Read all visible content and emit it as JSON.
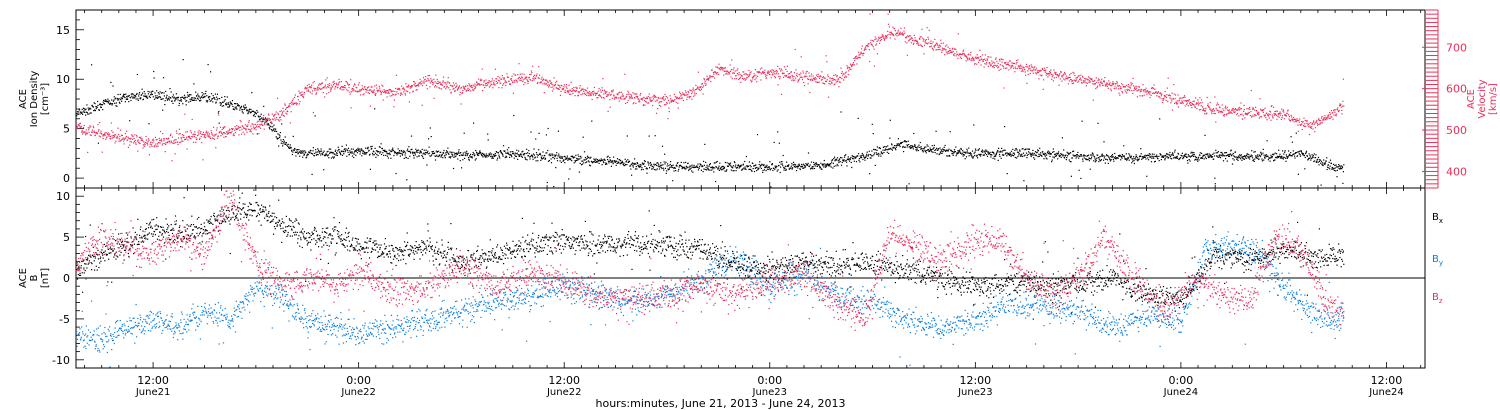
{
  "colors": {
    "black": "#000000",
    "red": "#e8305a",
    "blue": "#0a7fe0"
  },
  "footer": {
    "xlabel": "hours:minutes, June 21, 2013 - June 24, 2013"
  },
  "x_ticks": [
    {
      "time": "12:00",
      "date": "June21"
    },
    {
      "time": "0:00",
      "date": "June22"
    },
    {
      "time": "12:00",
      "date": "June22"
    },
    {
      "time": "0:00",
      "date": "June23"
    },
    {
      "time": "12:00",
      "date": "June23"
    },
    {
      "time": "0:00",
      "date": "June24"
    },
    {
      "time": "12:00",
      "date": "June24"
    }
  ],
  "chart_data": [
    {
      "type": "scatter",
      "title": "",
      "xlabel": "hours:minutes, June 21, 2013 - June 24, 2013",
      "xlim": [
        "2013-06-21 07:30",
        "2013-06-24 14:15"
      ],
      "ylabel_left": [
        "ACE",
        "Ion Density",
        "[cm⁻³]"
      ],
      "ylabel_right": [
        "ACE",
        "Velocity",
        "[km/s]"
      ],
      "ylim_left": [
        -1,
        17
      ],
      "ylim_right": [
        360,
        790
      ],
      "left_ticks": [
        0,
        5,
        10,
        15
      ],
      "right_ticks": [
        400,
        500,
        600,
        700
      ],
      "series": [
        {
          "axis": "left",
          "color": "black",
          "points": [
            [
              "2013-06-21 07:30",
              6.5
            ],
            [
              "2013-06-21 09:00",
              7.5
            ],
            [
              "2013-06-21 10:30",
              8.2
            ],
            [
              "2013-06-21 12:00",
              8.5
            ],
            [
              "2013-06-21 13:30",
              8.0
            ],
            [
              "2013-06-21 15:00",
              8.3
            ],
            [
              "2013-06-21 16:30",
              7.5
            ],
            [
              "2013-06-21 18:00",
              6.5
            ],
            [
              "2013-06-21 19:00",
              5.0
            ],
            [
              "2013-06-21 20:00",
              3.0
            ],
            [
              "2013-06-21 21:00",
              2.5
            ],
            [
              "2013-06-22 00:00",
              2.8
            ],
            [
              "2013-06-22 03:00",
              2.6
            ],
            [
              "2013-06-22 06:00",
              2.4
            ],
            [
              "2013-06-22 09:00",
              2.5
            ],
            [
              "2013-06-22 12:00",
              2.1
            ],
            [
              "2013-06-22 15:00",
              1.6
            ],
            [
              "2013-06-22 18:00",
              1.2
            ],
            [
              "2013-06-22 21:00",
              1.2
            ],
            [
              "2013-06-23 00:00",
              1.2
            ],
            [
              "2013-06-23 03:00",
              1.3
            ],
            [
              "2013-06-23 06:00",
              2.5
            ],
            [
              "2013-06-23 07:30",
              3.5
            ],
            [
              "2013-06-23 09:00",
              3.0
            ],
            [
              "2013-06-23 12:00",
              2.5
            ],
            [
              "2013-06-23 15:00",
              2.6
            ],
            [
              "2013-06-23 18:00",
              2.2
            ],
            [
              "2013-06-23 21:00",
              2.1
            ],
            [
              "2013-06-24 00:00",
              2.3
            ],
            [
              "2013-06-24 03:00",
              2.4
            ],
            [
              "2013-06-24 05:00",
              2.1
            ],
            [
              "2013-06-24 07:00",
              2.5
            ],
            [
              "2013-06-24 08:30",
              1.5
            ],
            [
              "2013-06-24 09:30",
              1.0
            ]
          ]
        },
        {
          "axis": "right",
          "color": "red",
          "points": [
            [
              "2013-06-21 07:30",
              510
            ],
            [
              "2013-06-21 09:00",
              490
            ],
            [
              "2013-06-21 10:30",
              480
            ],
            [
              "2013-06-21 12:00",
              470
            ],
            [
              "2013-06-21 13:30",
              480
            ],
            [
              "2013-06-21 15:00",
              490
            ],
            [
              "2013-06-21 16:30",
              500
            ],
            [
              "2013-06-21 18:00",
              510
            ],
            [
              "2013-06-21 19:30",
              540
            ],
            [
              "2013-06-21 21:00",
              600
            ],
            [
              "2013-06-21 22:30",
              610
            ],
            [
              "2013-06-22 00:00",
              600
            ],
            [
              "2013-06-22 02:00",
              590
            ],
            [
              "2013-06-22 04:00",
              620
            ],
            [
              "2013-06-22 06:00",
              600
            ],
            [
              "2013-06-22 08:00",
              620
            ],
            [
              "2013-06-22 10:00",
              630
            ],
            [
              "2013-06-22 12:00",
              600
            ],
            [
              "2013-06-22 14:00",
              590
            ],
            [
              "2013-06-22 16:00",
              580
            ],
            [
              "2013-06-22 18:00",
              570
            ],
            [
              "2013-06-22 19:30",
              590
            ],
            [
              "2013-06-22 21:00",
              650
            ],
            [
              "2013-06-22 22:30",
              630
            ],
            [
              "2013-06-23 00:00",
              640
            ],
            [
              "2013-06-23 02:00",
              630
            ],
            [
              "2013-06-23 04:00",
              620
            ],
            [
              "2013-06-23 05:30",
              700
            ],
            [
              "2013-06-23 07:00",
              740
            ],
            [
              "2013-06-23 08:30",
              720
            ],
            [
              "2013-06-23 10:00",
              700
            ],
            [
              "2013-06-23 12:00",
              670
            ],
            [
              "2013-06-23 14:00",
              660
            ],
            [
              "2013-06-23 16:00",
              640
            ],
            [
              "2013-06-23 18:00",
              625
            ],
            [
              "2013-06-23 20:00",
              610
            ],
            [
              "2013-06-23 22:00",
              595
            ],
            [
              "2013-06-24 00:00",
              570
            ],
            [
              "2013-06-24 02:00",
              550
            ],
            [
              "2013-06-24 04:00",
              545
            ],
            [
              "2013-06-24 06:00",
              540
            ],
            [
              "2013-06-24 07:30",
              510
            ],
            [
              "2013-06-24 08:30",
              530
            ],
            [
              "2013-06-24 09:30",
              560
            ]
          ]
        }
      ]
    },
    {
      "type": "scatter",
      "title": "",
      "xlim": [
        "2013-06-21 07:30",
        "2013-06-24 14:15"
      ],
      "ylabel_left": [
        "ACE",
        "B",
        "[nT]"
      ],
      "ylim": [
        -11,
        11
      ],
      "left_ticks": [
        -10,
        -5,
        0,
        5,
        10
      ],
      "zero_line": true,
      "legend_position": "right",
      "series": [
        {
          "name": "Bx",
          "color": "black",
          "points": [
            [
              "2013-06-21 07:30",
              1.0
            ],
            [
              "2013-06-21 09:00",
              3.0
            ],
            [
              "2013-06-21 10:30",
              4.0
            ],
            [
              "2013-06-21 12:00",
              6.0
            ],
            [
              "2013-06-21 13:30",
              5.5
            ],
            [
              "2013-06-21 15:00",
              6.0
            ],
            [
              "2013-06-21 16:30",
              8.0
            ],
            [
              "2013-06-21 18:00",
              8.5
            ],
            [
              "2013-06-21 19:30",
              6.5
            ],
            [
              "2013-06-21 21:00",
              5.0
            ],
            [
              "2013-06-21 22:30",
              5.5
            ],
            [
              "2013-06-22 00:00",
              4.0
            ],
            [
              "2013-06-22 02:00",
              3.0
            ],
            [
              "2013-06-22 04:00",
              4.0
            ],
            [
              "2013-06-22 06:00",
              2.0
            ],
            [
              "2013-06-22 08:00",
              3.0
            ],
            [
              "2013-06-22 10:00",
              4.0
            ],
            [
              "2013-06-22 12:00",
              4.5
            ],
            [
              "2013-06-22 14:00",
              4.0
            ],
            [
              "2013-06-22 16:00",
              4.5
            ],
            [
              "2013-06-22 18:00",
              4.0
            ],
            [
              "2013-06-22 20:00",
              3.5
            ],
            [
              "2013-06-22 22:00",
              2.0
            ],
            [
              "2013-06-23 00:00",
              1.0
            ],
            [
              "2013-06-23 02:00",
              2.0
            ],
            [
              "2013-06-23 04:00",
              1.5
            ],
            [
              "2013-06-23 06:00",
              2.0
            ],
            [
              "2013-06-23 08:00",
              1.0
            ],
            [
              "2013-06-23 10:00",
              0.0
            ],
            [
              "2013-06-23 12:00",
              -1.0
            ],
            [
              "2013-06-23 14:00",
              -0.5
            ],
            [
              "2013-06-23 16:00",
              -1.0
            ],
            [
              "2013-06-23 18:00",
              -0.5
            ],
            [
              "2013-06-23 20:00",
              0.0
            ],
            [
              "2013-06-23 22:00",
              -2.0
            ],
            [
              "2013-06-24 00:00",
              -2.5
            ],
            [
              "2013-06-24 02:00",
              3.0
            ],
            [
              "2013-06-24 04:00",
              2.5
            ],
            [
              "2013-06-24 06:00",
              3.5
            ],
            [
              "2013-06-24 08:00",
              2.5
            ],
            [
              "2013-06-24 09:30",
              3.0
            ]
          ]
        },
        {
          "name": "By",
          "color": "blue",
          "points": [
            [
              "2013-06-21 07:30",
              -7.0
            ],
            [
              "2013-06-21 09:00",
              -7.5
            ],
            [
              "2013-06-21 10:30",
              -6.0
            ],
            [
              "2013-06-21 12:00",
              -5.0
            ],
            [
              "2013-06-21 13:30",
              -6.0
            ],
            [
              "2013-06-21 15:00",
              -4.0
            ],
            [
              "2013-06-21 16:30",
              -5.0
            ],
            [
              "2013-06-21 18:00",
              -1.0
            ],
            [
              "2013-06-21 19:30",
              -2.0
            ],
            [
              "2013-06-21 21:00",
              -5.5
            ],
            [
              "2013-06-21 22:30",
              -6.0
            ],
            [
              "2013-06-22 00:00",
              -7.0
            ],
            [
              "2013-06-22 02:00",
              -6.0
            ],
            [
              "2013-06-22 04:00",
              -5.0
            ],
            [
              "2013-06-22 06:00",
              -4.0
            ],
            [
              "2013-06-22 08:00",
              -3.0
            ],
            [
              "2013-06-22 10:00",
              -2.0
            ],
            [
              "2013-06-22 12:00",
              -1.0
            ],
            [
              "2013-06-22 14:00",
              -2.0
            ],
            [
              "2013-06-22 16:00",
              -3.0
            ],
            [
              "2013-06-22 18:00",
              -2.0
            ],
            [
              "2013-06-22 20:00",
              0.0
            ],
            [
              "2013-06-22 22:00",
              2.5
            ],
            [
              "2013-06-23 00:00",
              -1.0
            ],
            [
              "2013-06-23 02:00",
              0.5
            ],
            [
              "2013-06-23 04:00",
              -2.0
            ],
            [
              "2013-06-23 06:00",
              -3.0
            ],
            [
              "2013-06-23 08:00",
              -5.0
            ],
            [
              "2013-06-23 10:00",
              -6.0
            ],
            [
              "2013-06-23 12:00",
              -5.0
            ],
            [
              "2013-06-23 14:00",
              -3.0
            ],
            [
              "2013-06-23 16:00",
              -3.5
            ],
            [
              "2013-06-23 18:00",
              -4.0
            ],
            [
              "2013-06-23 20:00",
              -6.0
            ],
            [
              "2013-06-23 22:00",
              -4.5
            ],
            [
              "2013-06-24 00:00",
              -5.0
            ],
            [
              "2013-06-24 01:30",
              3.5
            ],
            [
              "2013-06-24 03:00",
              4.0
            ],
            [
              "2013-06-24 04:30",
              3.5
            ],
            [
              "2013-06-24 06:00",
              -1.0
            ],
            [
              "2013-06-24 07:30",
              -4.0
            ],
            [
              "2013-06-24 09:00",
              -5.5
            ],
            [
              "2013-06-24 09:30",
              -4.0
            ]
          ]
        },
        {
          "name": "Bz",
          "color": "red",
          "points": [
            [
              "2013-06-21 07:30",
              2.0
            ],
            [
              "2013-06-21 09:00",
              5.0
            ],
            [
              "2013-06-21 10:30",
              4.0
            ],
            [
              "2013-06-21 12:00",
              3.0
            ],
            [
              "2013-06-21 13:30",
              5.0
            ],
            [
              "2013-06-21 15:00",
              3.0
            ],
            [
              "2013-06-21 16:00",
              8.0
            ],
            [
              "2013-06-21 16:30",
              10.0
            ],
            [
              "2013-06-21 18:00",
              2.0
            ],
            [
              "2013-06-21 19:30",
              -1.0
            ],
            [
              "2013-06-21 21:00",
              0.0
            ],
            [
              "2013-06-21 22:30",
              -1.0
            ],
            [
              "2013-06-22 00:00",
              1.0
            ],
            [
              "2013-06-22 02:00",
              -1.5
            ],
            [
              "2013-06-22 04:00",
              -1.0
            ],
            [
              "2013-06-22 06:00",
              1.5
            ],
            [
              "2013-06-22 08:00",
              -1.0
            ],
            [
              "2013-06-22 10:00",
              0.5
            ],
            [
              "2013-06-22 12:00",
              -0.5
            ],
            [
              "2013-06-22 14:00",
              -2.0
            ],
            [
              "2013-06-22 16:00",
              -2.5
            ],
            [
              "2013-06-22 18:00",
              -2.0
            ],
            [
              "2013-06-22 20:00",
              -1.0
            ],
            [
              "2013-06-22 22:00",
              -2.0
            ],
            [
              "2013-06-23 00:00",
              0.0
            ],
            [
              "2013-06-23 02:00",
              0.5
            ],
            [
              "2013-06-23 04:00",
              -3.0
            ],
            [
              "2013-06-23 05:30",
              -5.0
            ],
            [
              "2013-06-23 07:00",
              6.0
            ],
            [
              "2013-06-23 08:30",
              4.0
            ],
            [
              "2013-06-23 10:00",
              2.0
            ],
            [
              "2013-06-23 12:00",
              5.0
            ],
            [
              "2013-06-23 13:30",
              4.5
            ],
            [
              "2013-06-23 15:00",
              0.0
            ],
            [
              "2013-06-23 16:30",
              -2.0
            ],
            [
              "2013-06-23 18:00",
              0.0
            ],
            [
              "2013-06-23 19:30",
              5.0
            ],
            [
              "2013-06-23 21:00",
              0.5
            ],
            [
              "2013-06-23 23:00",
              -4.0
            ],
            [
              "2013-06-24 01:00",
              0.0
            ],
            [
              "2013-06-24 02:30",
              -2.0
            ],
            [
              "2013-06-24 04:00",
              -3.0
            ],
            [
              "2013-06-24 05:30",
              5.0
            ],
            [
              "2013-06-24 07:00",
              3.5
            ],
            [
              "2013-06-24 08:30",
              -3.0
            ],
            [
              "2013-06-24 09:30",
              -4.0
            ]
          ]
        }
      ]
    }
  ]
}
